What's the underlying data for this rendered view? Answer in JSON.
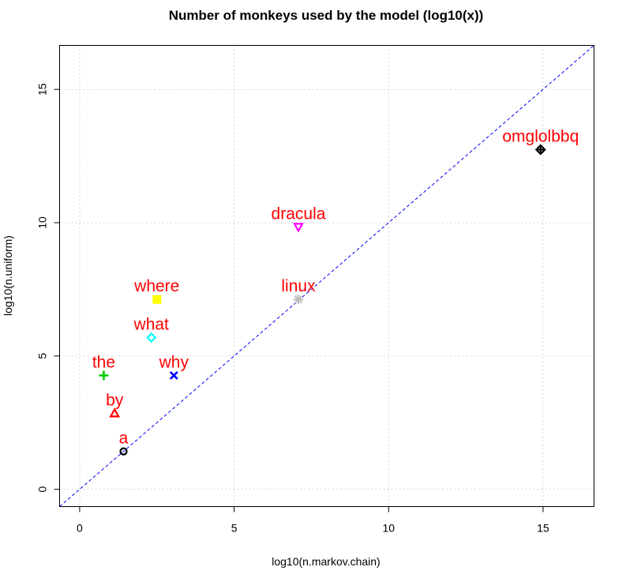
{
  "chart_data": {
    "type": "scatter",
    "title": "Number of monkeys used by the model (log10(x))",
    "xlabel": "log10(n.markov.chain)",
    "ylabel": "log10(n.uniform)",
    "xlim": [
      -0.65,
      16.65
    ],
    "ylim": [
      -0.65,
      16.65
    ],
    "x_ticks": [
      0,
      5,
      10,
      15
    ],
    "y_ticks": [
      0,
      5,
      10,
      15
    ],
    "grid": true,
    "grid_color": "#d3d3d3",
    "label_color": "#ff0000",
    "reference_line": {
      "intercept": 0,
      "slope": 1,
      "color": "#0000ff",
      "style": "dashed"
    },
    "points": [
      {
        "label": "a",
        "x": 1.42,
        "y": 1.42,
        "shape": "open-circle",
        "color": "#000000"
      },
      {
        "label": "by",
        "x": 1.13,
        "y": 2.85,
        "shape": "open-triangle-up",
        "color": "#ff0000"
      },
      {
        "label": "the",
        "x": 0.78,
        "y": 4.27,
        "shape": "plus",
        "color": "#00cd00"
      },
      {
        "label": "why",
        "x": 3.05,
        "y": 4.27,
        "shape": "cross",
        "color": "#0000ff"
      },
      {
        "label": "what",
        "x": 2.32,
        "y": 5.69,
        "shape": "open-diamond",
        "color": "#00ffff"
      },
      {
        "label": "where",
        "x": 2.5,
        "y": 7.12,
        "shape": "filled-square",
        "color": "#ffff00"
      },
      {
        "label": "linux",
        "x": 7.08,
        "y": 7.12,
        "shape": "asterisk",
        "color": "#bebebe"
      },
      {
        "label": "dracula",
        "x": 7.08,
        "y": 9.84,
        "shape": "open-triangle-down",
        "color": "#ff00ff"
      },
      {
        "label": "omglolbbq",
        "x": 14.92,
        "y": 12.74,
        "shape": "diamond-plus",
        "color": "#000000"
      }
    ]
  }
}
